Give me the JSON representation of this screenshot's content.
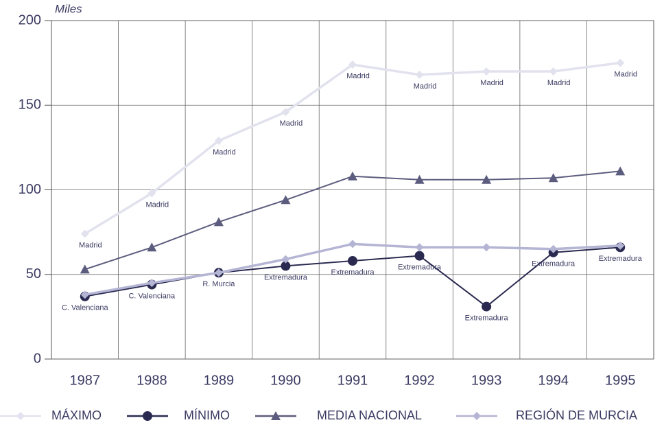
{
  "chart_data": {
    "type": "line",
    "y_label": "Miles",
    "categories": [
      "1987",
      "1988",
      "1989",
      "1990",
      "1991",
      "1992",
      "1993",
      "1994",
      "1995"
    ],
    "ylim": [
      0,
      200
    ],
    "yticks": [
      0,
      50,
      100,
      150,
      200
    ],
    "grid": true,
    "legend": "bottom",
    "series": [
      {
        "name": "MÁXIMO",
        "color": "#e2e2ef",
        "marker": "diamond",
        "values": [
          74,
          98,
          129,
          146,
          174,
          168,
          170,
          170,
          175
        ],
        "labels": [
          "Madrid",
          "Madrid",
          "Madrid",
          "Madrid",
          "Madrid",
          "Madrid",
          "Madrid",
          "Madrid",
          "Madrid"
        ]
      },
      {
        "name": "MÍNIMO",
        "color": "#2a2a50",
        "marker": "circle",
        "values": [
          37,
          44,
          51,
          55,
          58,
          61,
          31,
          63,
          66
        ],
        "labels": [
          "C. Valenciana",
          "C. Valenciana",
          "R. Murcia",
          "Extremadura",
          "Extremadura",
          "Extremadura",
          "Extremadura",
          "Extremadura",
          "Extremadura"
        ]
      },
      {
        "name": "MEDIA NACIONAL",
        "color": "#5c5c7e",
        "marker": "triangle",
        "values": [
          53,
          66,
          81,
          94,
          108,
          106,
          106,
          107,
          111
        ]
      },
      {
        "name": "REGIÓN DE MURCIA",
        "color": "#b4b4d4",
        "marker": "diamond",
        "values": [
          38,
          45,
          51,
          59,
          68,
          66,
          66,
          65,
          67
        ]
      }
    ]
  }
}
